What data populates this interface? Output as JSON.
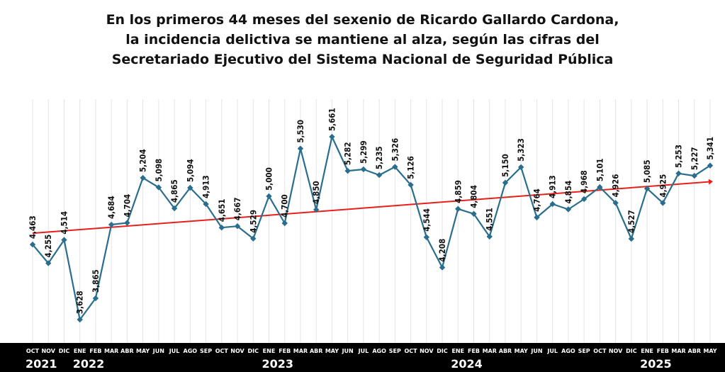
{
  "chart_data": {
    "type": "line",
    "title_lines": [
      "En los primeros 44 meses del sexenio de Ricardo Gallardo Cardona,",
      "la incidencia delictiva se mantiene al alza, según las cifras del",
      "Secretariado Ejecutivo del Sistema Nacional de Seguridad Pública"
    ],
    "x": [
      "OCT",
      "NOV",
      "DIC",
      "ENE",
      "FEB",
      "MAR",
      "ABR",
      "MAY",
      "JUN",
      "JUL",
      "AGO",
      "SEP",
      "OCT",
      "NOV",
      "DIC",
      "ENE",
      "FEB",
      "MAR",
      "ABR",
      "MAY",
      "JUN",
      "JUL",
      "AGO",
      "SEP",
      "OCT",
      "NOV",
      "DIC",
      "ENE",
      "FEB",
      "MAR",
      "ABR",
      "MAY",
      "JUN",
      "JUL",
      "AGO",
      "SEP",
      "OCT",
      "NOV",
      "DIC",
      "ENE",
      "FEB",
      "MAR",
      "ABR",
      "MAY"
    ],
    "years": [
      {
        "label": "2021",
        "start": 0,
        "end": 2
      },
      {
        "label": "2022",
        "start": 3,
        "end": 14
      },
      {
        "label": "2023",
        "start": 15,
        "end": 26
      },
      {
        "label": "2024",
        "start": 27,
        "end": 38
      },
      {
        "label": "2025",
        "start": 39,
        "end": 43
      }
    ],
    "series": [
      {
        "values": [
          4463,
          4255,
          4514,
          3628,
          3865,
          4684,
          4704,
          5204,
          5098,
          4865,
          5094,
          4913,
          4651,
          4667,
          4529,
          5000,
          4700,
          5530,
          4850,
          5661,
          5282,
          5299,
          5235,
          5326,
          5126,
          4544,
          4208,
          4859,
          4804,
          4551,
          5150,
          5323,
          4764,
          4913,
          4854,
          4968,
          5101,
          4926,
          4527,
          5085,
          4925,
          5253,
          5227,
          5341
        ],
        "labels": [
          "4,463",
          "4,255",
          "4,514",
          "3,628",
          "3,865",
          "4,684",
          "4,704",
          "5,204",
          "5,098",
          "4,865",
          "5,094",
          "4,913",
          "4,651",
          "4,667",
          "4,529",
          "5,000",
          "4,700",
          "5,530",
          "4,850",
          "5,661",
          "5,282",
          "5,299",
          "5,235",
          "5,326",
          "5,126",
          "4,544",
          "4,208",
          "4,859",
          "4,804",
          "4,551",
          "5,150",
          "5,323",
          "4,764",
          "4,913",
          "4,854",
          "4,968",
          "5,101",
          "4,926",
          "4,527",
          "5,085",
          "4,925",
          "5,253",
          "5,227",
          "5,341"
        ],
        "color": "#2a6e8e"
      }
    ],
    "trendline": {
      "color": "#e8201a"
    },
    "ylim": [
      3400,
      6000
    ],
    "grid": "vertical",
    "colors": {
      "axis_band": "#000000",
      "axis_text": "#ffffff",
      "grid": "#e4e4e4"
    }
  }
}
